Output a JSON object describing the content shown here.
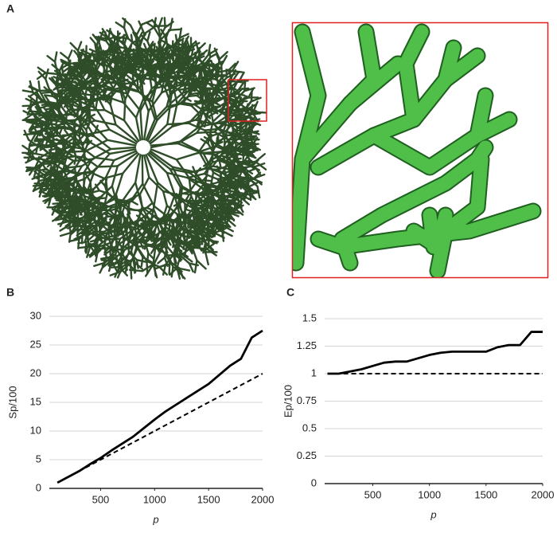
{
  "panel_labels": [
    "A",
    "B",
    "C"
  ],
  "chart_data": [
    {
      "type": "line",
      "xlabel": "p",
      "ylabel": "Sp/100",
      "x": [
        100,
        200,
        300,
        400,
        500,
        600,
        700,
        800,
        900,
        1000,
        1100,
        1200,
        1300,
        1400,
        1500,
        1600,
        1700,
        1800,
        1900,
        2000
      ],
      "series": [
        {
          "color": "#000000",
          "style": "solid",
          "values": [
            1,
            2,
            3,
            4.2,
            5.3,
            6.6,
            7.8,
            9,
            10.5,
            12,
            13.4,
            14.6,
            15.8,
            17,
            18.2,
            19.8,
            21.4,
            22.6,
            26.3,
            27.5
          ]
        },
        {
          "color": "#000000",
          "style": "dashed",
          "values": [
            1,
            2,
            3,
            4,
            5,
            6,
            7,
            8,
            9,
            10,
            11,
            12,
            13,
            14,
            15,
            16,
            17,
            18,
            19,
            20
          ]
        }
      ],
      "xlim": [
        25,
        2000
      ],
      "xticks": [
        500,
        1000,
        1500,
        2000
      ],
      "ylim": [
        0,
        30
      ],
      "yticks": [
        0,
        5,
        10,
        15,
        20,
        25,
        30
      ],
      "grid": true
    },
    {
      "type": "line",
      "xlabel": "p",
      "ylabel": "Ep/100",
      "x": [
        100,
        200,
        300,
        400,
        500,
        600,
        700,
        800,
        900,
        1000,
        1100,
        1200,
        1300,
        1400,
        1500,
        1600,
        1700,
        1800,
        1900,
        2000
      ],
      "series": [
        {
          "color": "#000000",
          "style": "solid",
          "values": [
            1,
            1,
            1.02,
            1.04,
            1.07,
            1.1,
            1.11,
            1.11,
            1.14,
            1.17,
            1.19,
            1.2,
            1.2,
            1.2,
            1.2,
            1.24,
            1.26,
            1.26,
            1.38,
            1.38
          ]
        },
        {
          "color": "#000000",
          "style": "dashed",
          "values": [
            1,
            1,
            1,
            1,
            1,
            1,
            1,
            1,
            1,
            1,
            1,
            1,
            1,
            1,
            1,
            1,
            1,
            1,
            1,
            1
          ]
        }
      ],
      "xlim": [
        75,
        2000
      ],
      "xticks": [
        500,
        1000,
        1500,
        2000
      ],
      "ylim": [
        0,
        1.5
      ],
      "yticks": [
        0,
        0.25,
        0.5,
        0.75,
        1,
        1.25,
        1.5
      ],
      "grid": true
    }
  ]
}
